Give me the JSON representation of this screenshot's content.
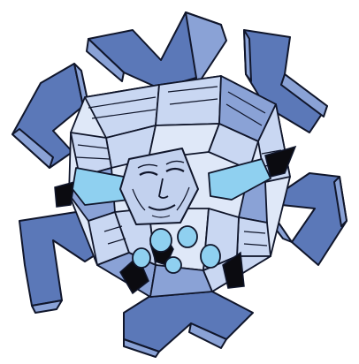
{
  "artwork": {
    "subject": "crystal-snowflake-creature",
    "colors": {
      "background": "#ffffff",
      "outline": "#10162b",
      "arm_dark": "#5b78b8",
      "arm_mid": "#8aa2d6",
      "facet_light": "#c9d7f2",
      "facet_pale": "#dfe8f8",
      "face": "#c2d1ee",
      "chain_cyan": "#8fd0f0",
      "shadow_black": "#0b0b10"
    }
  }
}
